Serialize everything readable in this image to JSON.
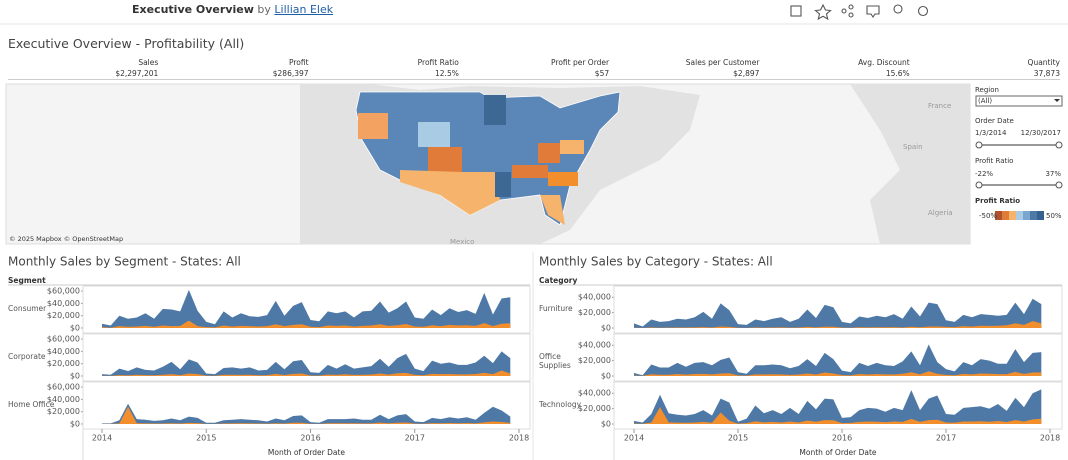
{
  "header": {
    "title": "Executive Overview",
    "by": "by",
    "author": "Lillian Elek"
  },
  "page_title": "Executive Overview - Profitability (All)",
  "kpis": [
    {
      "label": "Sales",
      "value": "$2,297,201"
    },
    {
      "label": "Profit",
      "value": "$286,397"
    },
    {
      "label": "Profit Ratio",
      "value": "12.5%"
    },
    {
      "label": "Profit per Order",
      "value": "$57"
    },
    {
      "label": "Sales per Customer",
      "value": "$2,897"
    },
    {
      "label": "Avg. Discount",
      "value": "15.6%"
    },
    {
      "label": "Quantity",
      "value": "37,873"
    }
  ],
  "map": {
    "attribution": "© 2025 Mapbox © OpenStreetMap",
    "places": [
      "France",
      "Spain",
      "Algeria",
      "Mexico"
    ]
  },
  "filters": {
    "region_label": "Region",
    "region_value": "(All)",
    "date_label": "Order Date",
    "date_start": "1/3/2014",
    "date_end": "12/30/2017",
    "ratio_label": "Profit Ratio",
    "ratio_min": "-22%",
    "ratio_max": "37%",
    "legend_label": "Profit Ratio",
    "legend_min": "-50%",
    "legend_max": "50%"
  },
  "chart_data": [
    {
      "type": "area",
      "title": "Monthly Sales by Segment - States: All",
      "facet_label": "Segment",
      "x_label": "Month of Order Date",
      "xlim": [
        0,
        48
      ],
      "xticks": [
        {
          "value": 0,
          "label": "2014"
        },
        {
          "value": 12,
          "label": "2015"
        },
        {
          "value": 24,
          "label": "2016"
        },
        {
          "value": 36,
          "label": "2017"
        },
        {
          "value": 48,
          "label": "2018"
        }
      ],
      "ylim": [
        0,
        65000
      ],
      "yticks": [
        {
          "value": 0,
          "label": "$0"
        },
        {
          "value": 20000,
          "label": "$20,000"
        },
        {
          "value": 40000,
          "label": "$40,000"
        },
        {
          "value": 60000,
          "label": "$60,000"
        }
      ],
      "panels": [
        {
          "name": "Consumer",
          "series": [
            {
              "color": "#4e79a7",
              "values": [
                7000,
                4000,
                20000,
                15000,
                17000,
                24000,
                15000,
                31000,
                30000,
                27000,
                62000,
                28000,
                10000,
                6000,
                27000,
                17000,
                24000,
                19000,
                18000,
                21000,
                44000,
                20000,
                36000,
                42000,
                13000,
                11000,
                27000,
                24000,
                27000,
                17000,
                27000,
                28000,
                43000,
                25000,
                32000,
                43000,
                17000,
                15000,
                30000,
                21000,
                32000,
                26000,
                29000,
                23000,
                57000,
                22000,
                48000,
                50000
              ]
            },
            {
              "color": "#f28e2b",
              "values": [
                1500,
                500,
                3000,
                2000,
                2500,
                3500,
                2000,
                4000,
                3000,
                3500,
                12000,
                3000,
                1500,
                1000,
                4000,
                2500,
                3500,
                3000,
                2500,
                3000,
                6000,
                3000,
                5000,
                6000,
                2000,
                1500,
                4000,
                3500,
                4000,
                2500,
                3500,
                4000,
                6000,
                3500,
                4500,
                6500,
                2500,
                2000,
                4500,
                3000,
                5000,
                4000,
                4500,
                3500,
                8000,
                3000,
                7000,
                7500
              ]
            }
          ]
        },
        {
          "name": "Corporate",
          "series": [
            {
              "color": "#4e79a7",
              "values": [
                3000,
                2000,
                12000,
                8000,
                14000,
                10000,
                9000,
                15000,
                23000,
                11000,
                27000,
                22000,
                4000,
                3000,
                13000,
                14000,
                12000,
                14000,
                9000,
                10000,
                23000,
                11000,
                24000,
                26000,
                6000,
                5000,
                18000,
                12000,
                19000,
                12000,
                14000,
                16000,
                28000,
                15000,
                29000,
                36000,
                12000,
                8000,
                25000,
                20000,
                22000,
                18000,
                18000,
                22000,
                33000,
                21000,
                40000,
                29000
              ]
            },
            {
              "color": "#f28e2b",
              "values": [
                500,
                300,
                1500,
                1000,
                2000,
                1500,
                1200,
                2000,
                3000,
                1500,
                4000,
                3000,
                600,
                400,
                2000,
                2000,
                1800,
                2000,
                1200,
                1500,
                3500,
                1600,
                3500,
                4000,
                800,
                700,
                2500,
                1800,
                2800,
                1800,
                2000,
                2400,
                4000,
                2200,
                4500,
                5000,
                1800,
                1200,
                3500,
                3000,
                3200,
                2600,
                2600,
                3200,
                5000,
                3000,
                9000,
                4000
              ]
            }
          ]
        },
        {
          "name": "Home Office",
          "series": [
            {
              "color": "#4e79a7",
              "values": [
                1000,
                1000,
                6000,
                33000,
                8000,
                7000,
                5000,
                6000,
                9000,
                6000,
                12000,
                10000,
                2000,
                2000,
                6000,
                7000,
                8000,
                7000,
                6000,
                4000,
                9000,
                6000,
                13000,
                14000,
                3000,
                2000,
                8000,
                8000,
                8000,
                9000,
                7000,
                7000,
                15000,
                8000,
                14000,
                16000,
                4000,
                3000,
                10000,
                8000,
                11000,
                9000,
                11000,
                7000,
                18000,
                28000,
                22000,
                12000
              ]
            },
            {
              "color": "#f28e2b",
              "values": [
                200,
                200,
                1000,
                28000,
                1200,
                1000,
                800,
                900,
                1300,
                900,
                1800,
                1500,
                300,
                300,
                900,
                1000,
                1200,
                1000,
                900,
                600,
                1300,
                900,
                2000,
                2000,
                400,
                300,
                1200,
                1200,
                1200,
                1300,
                1000,
                1000,
                2200,
                1200,
                2000,
                2400,
                600,
                400,
                1500,
                1200,
                1600,
                1300,
                1600,
                1000,
                2600,
                4000,
                3200,
                1800
              ]
            }
          ]
        }
      ]
    },
    {
      "type": "area",
      "title": "Monthly Sales by Category - States: All",
      "facet_label": "Category",
      "x_label": "Month of Order Date",
      "xlim": [
        0,
        48
      ],
      "xticks": [
        {
          "value": 0,
          "label": "2014"
        },
        {
          "value": 12,
          "label": "2015"
        },
        {
          "value": 24,
          "label": "2016"
        },
        {
          "value": 36,
          "label": "2017"
        },
        {
          "value": 48,
          "label": "2018"
        }
      ],
      "ylim": [
        0,
        52000
      ],
      "yticks": [
        {
          "value": 0,
          "label": "$0"
        },
        {
          "value": 20000,
          "label": "$20,000"
        },
        {
          "value": 40000,
          "label": "$40,000"
        }
      ],
      "panels": [
        {
          "name": "Furniture",
          "series": [
            {
              "color": "#4e79a7",
              "values": [
                6000,
                2000,
                11000,
                8000,
                9000,
                12000,
                11000,
                14000,
                21000,
                12000,
                32000,
                23000,
                5000,
                4000,
                11000,
                9000,
                12000,
                14000,
                8000,
                12000,
                24000,
                13000,
                30000,
                27000,
                8000,
                6000,
                15000,
                13000,
                16000,
                14000,
                18000,
                12000,
                28000,
                15000,
                33000,
                31000,
                10000,
                8000,
                17000,
                14000,
                18000,
                17000,
                16000,
                17000,
                33000,
                18000,
                38000,
                31000
              ]
            },
            {
              "color": "#f28e2b",
              "values": [
                300,
                100,
                600,
                400,
                500,
                700,
                600,
                800,
                1200,
                700,
                2000,
                1400,
                300,
                200,
                600,
                500,
                700,
                800,
                500,
                700,
                1500,
                800,
                1800,
                1600,
                500,
                400,
                900,
                800,
                1000,
                900,
                1100,
                700,
                1700,
                900,
                2000,
                1900,
                1500,
                1200,
                2500,
                2000,
                3000,
                2800,
                3000,
                3500,
                6000,
                4000,
                9000,
                6000
              ]
            }
          ]
        },
        {
          "name": "Office Supplies",
          "series": [
            {
              "color": "#4e79a7",
              "values": [
                4000,
                1000,
                15000,
                11000,
                11000,
                17000,
                12000,
                17000,
                18000,
                14000,
                21000,
                24000,
                5000,
                3000,
                14000,
                14000,
                15000,
                14000,
                10000,
                13000,
                22000,
                13000,
                30000,
                22000,
                7000,
                5000,
                17000,
                13000,
                17000,
                14000,
                13000,
                19000,
                32000,
                14000,
                41000,
                18000,
                9000,
                6000,
                18000,
                14000,
                22000,
                20000,
                16000,
                16000,
                35000,
                18000,
                30000,
                31000
              ]
            },
            {
              "color": "#f28e2b",
              "values": [
                600,
                150,
                2300,
                1700,
                1700,
                2600,
                1800,
                2600,
                2700,
                2100,
                3200,
                3600,
                800,
                500,
                2100,
                2100,
                2300,
                2100,
                1500,
                2000,
                3300,
                2000,
                4500,
                3300,
                1100,
                800,
                2600,
                2000,
                2600,
                2100,
                2000,
                2900,
                4800,
                2100,
                6200,
                2700,
                1400,
                900,
                2700,
                2100,
                3300,
                3000,
                2400,
                2400,
                5300,
                2700,
                4500,
                4700
              ]
            }
          ]
        },
        {
          "name": "Technology",
          "series": [
            {
              "color": "#4e79a7",
              "values": [
                4000,
                2000,
                13000,
                38000,
                14000,
                12000,
                11000,
                13000,
                18000,
                11000,
                33000,
                28000,
                3000,
                7000,
                24000,
                14000,
                18000,
                13000,
                21000,
                13000,
                30000,
                19000,
                33000,
                32000,
                8000,
                9000,
                18000,
                21000,
                20000,
                16000,
                21000,
                18000,
                44000,
                18000,
                33000,
                37000,
                13000,
                12000,
                21000,
                22000,
                23000,
                20000,
                26000,
                17000,
                34000,
                22000,
                40000,
                45000
              ]
            },
            {
              "color": "#f28e2b",
              "values": [
                600,
                300,
                2000,
                22000,
                2100,
                1800,
                1700,
                2000,
                2700,
                1700,
                15000,
                4200,
                500,
                1100,
                3600,
                2100,
                2700,
                2000,
                3200,
                2000,
                4500,
                2900,
                5000,
                4800,
                1200,
                1400,
                2700,
                3200,
                3000,
                2400,
                3200,
                2700,
                6600,
                2700,
                5000,
                5600,
                2000,
                1800,
                3200,
                3300,
                3500,
                3000,
                3900,
                2600,
                5100,
                3300,
                6000,
                6800
              ]
            }
          ]
        }
      ]
    }
  ]
}
